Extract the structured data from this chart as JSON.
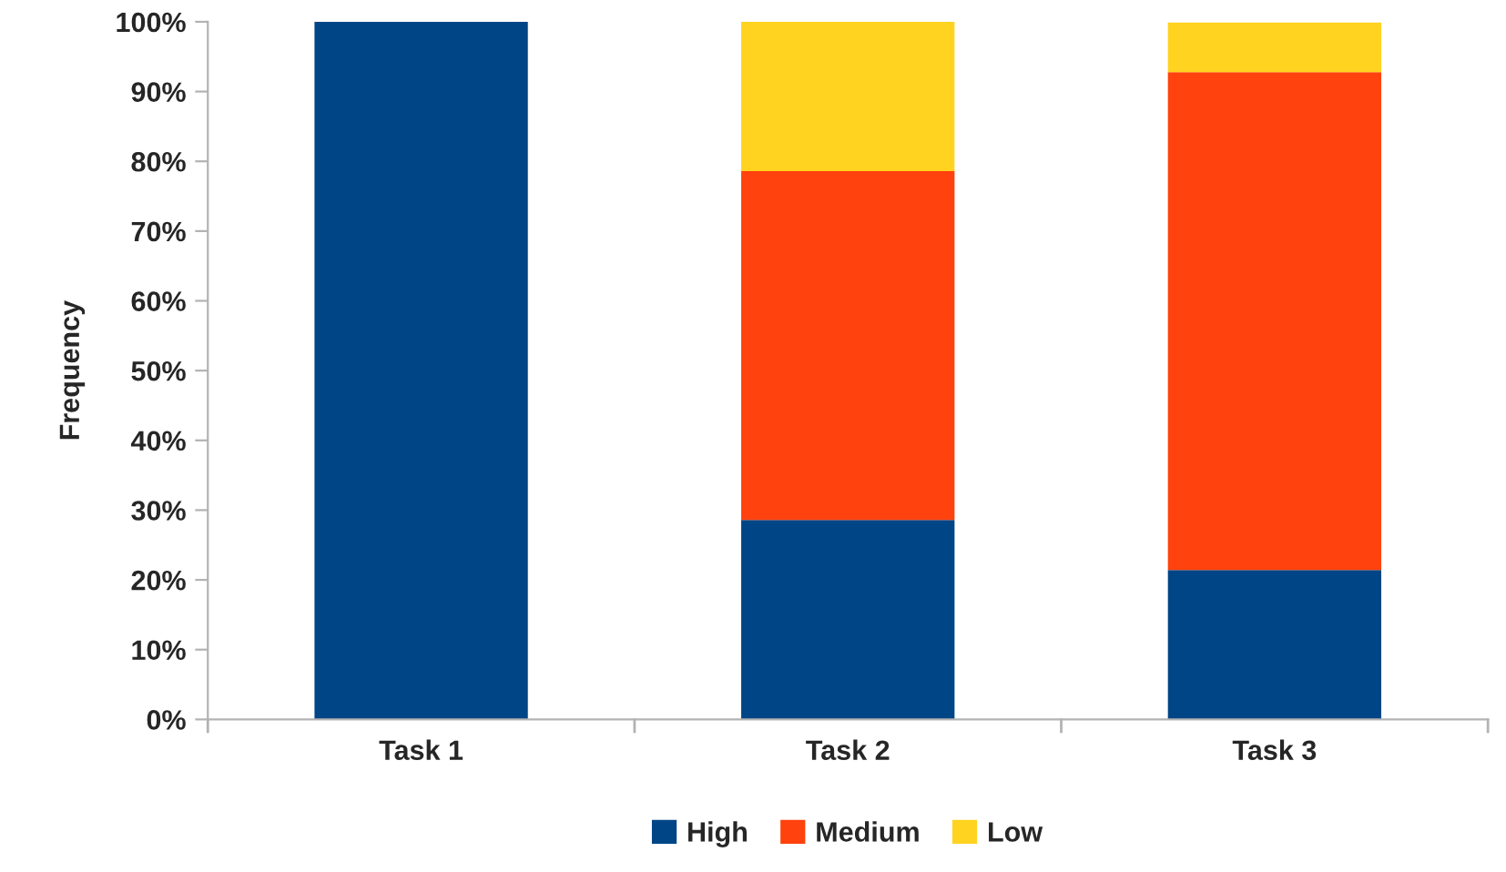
{
  "chart_data": {
    "type": "bar",
    "stacked": true,
    "ylabel": "Frequency",
    "categories": [
      "Task 1",
      "Task 2",
      "Task 3"
    ],
    "series": [
      {
        "name": "High",
        "color": "#004586",
        "values": [
          100,
          28.6,
          21.4
        ]
      },
      {
        "name": "Medium",
        "color": "#ff420e",
        "values": [
          0,
          50.0,
          71.4
        ]
      },
      {
        "name": "Low",
        "color": "#ffd320",
        "values": [
          0,
          21.4,
          7.1
        ]
      }
    ],
    "ylim": [
      0,
      100
    ],
    "yticks": [
      {
        "value": 0,
        "label": "0%"
      },
      {
        "value": 10,
        "label": "10%"
      },
      {
        "value": 20,
        "label": "20%"
      },
      {
        "value": 30,
        "label": "30%"
      },
      {
        "value": 40,
        "label": "40%"
      },
      {
        "value": 50,
        "label": "50%"
      },
      {
        "value": 60,
        "label": "60%"
      },
      {
        "value": 70,
        "label": "70%"
      },
      {
        "value": 80,
        "label": "80%"
      },
      {
        "value": 90,
        "label": "90%"
      },
      {
        "value": 100,
        "label": "100%"
      }
    ],
    "grid": false,
    "legend": "bottom"
  }
}
